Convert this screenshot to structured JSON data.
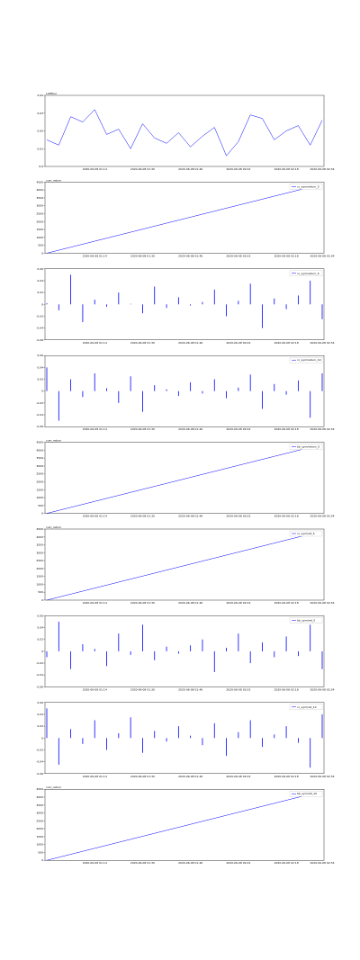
{
  "chart_data": [
    {
      "type": "line",
      "title": "LATEbsl",
      "categories": [
        null,
        null,
        null,
        null,
        "2020-06-08 01:14",
        null,
        null,
        null,
        "2020-06-08 01:30",
        null,
        null,
        null,
        "2020-06-08 01:46",
        null,
        null,
        null,
        "2020-06-08 02:02",
        null,
        null,
        null,
        "2020-06-08 02:18",
        null,
        null,
        "2020-06-08 02:34"
      ],
      "series": [
        {
          "name": "LATEbsl",
          "color": "#0000ff",
          "values": [
            0.615,
            0.612,
            0.628,
            0.625,
            0.632,
            0.618,
            0.621,
            0.61,
            0.624,
            0.616,
            0.613,
            0.619,
            0.611,
            0.617,
            0.622,
            0.606,
            0.614,
            0.629,
            0.627,
            0.615,
            0.62,
            0.623,
            0.612,
            0.626
          ]
        }
      ],
      "ylim": [
        0.6,
        0.64
      ],
      "yticks": [
        0.6,
        0.61,
        0.62,
        0.63,
        0.64
      ],
      "legend": false
    },
    {
      "type": "line",
      "title": "cum_return",
      "categories": [
        null,
        null,
        null,
        null,
        "2020-06-08 01:14",
        null,
        null,
        null,
        "2020-06-08 01:30",
        null,
        null,
        null,
        "2020-06-08 01:46",
        null,
        null,
        null,
        "2020-06-08 02:02",
        null,
        null,
        null,
        "2020-06-08 02:18",
        null,
        null,
        "2020-06-08 02:34"
      ],
      "series": [
        {
          "name": "cc_sym/return_5",
          "color": "#0000ff",
          "values": [
            0,
            190,
            380,
            570,
            760,
            950,
            1140,
            1330,
            1520,
            1710,
            1900,
            2090,
            2280,
            2470,
            2660,
            2850,
            3040,
            3230,
            3420,
            3610,
            3800,
            3990,
            4180,
            4370
          ]
        }
      ],
      "ylim": [
        0,
        4500
      ],
      "yticks": [
        0,
        500,
        1000,
        1500,
        2000,
        2500,
        3000,
        3500,
        4000,
        4500
      ],
      "legend": "upper right"
    },
    {
      "type": "bar",
      "categories": [
        null,
        null,
        null,
        null,
        "2020-06-08 01:14",
        null,
        null,
        null,
        "2020-06-08 01:30",
        null,
        null,
        null,
        "2020-06-08 01:46",
        null,
        null,
        null,
        "2020-06-08 02:02",
        null,
        null,
        null,
        "2020-06-08 02:18",
        null,
        null,
        "2020-06-08 02:34"
      ],
      "series": [
        {
          "name": "cc_sym/return_5",
          "color": "#0000ff",
          "values": [
            0.002,
            -0.01,
            0.05,
            -0.03,
            0.008,
            -0.004,
            0.02,
            0.001,
            -0.015,
            0.03,
            -0.006,
            0.012,
            -0.002,
            0.004,
            0.025,
            -0.02,
            0.006,
            0.035,
            -0.04,
            0.01,
            -0.008,
            0.015,
            0.04,
            -0.025
          ]
        }
      ],
      "ylim": [
        -0.06,
        0.06
      ],
      "yticks": [
        -0.06,
        -0.04,
        -0.02,
        0,
        0.02,
        0.04,
        0.06
      ],
      "legend": "upper right"
    },
    {
      "type": "bar",
      "categories": [
        null,
        null,
        null,
        null,
        "2020-06-08 01:14",
        null,
        null,
        null,
        "2020-06-08 01:30",
        null,
        null,
        null,
        "2020-06-08 01:46",
        null,
        null,
        null,
        "2020-06-08 02:02",
        null,
        null,
        null,
        "2020-06-08 02:18",
        null,
        null,
        "2020-06-08 02:34"
      ],
      "series": [
        {
          "name": "cc_sym/return_10",
          "color": "#0000ff",
          "values": [
            0.04,
            -0.05,
            0.02,
            -0.01,
            0.03,
            0.005,
            -0.02,
            0.025,
            -0.035,
            0.01,
            0.003,
            -0.008,
            0.015,
            -0.004,
            0.02,
            -0.012,
            0.006,
            0.028,
            -0.03,
            0.012,
            -0.006,
            0.018,
            -0.045,
            0.03
          ]
        }
      ],
      "ylim": [
        -0.06,
        0.06
      ],
      "yticks": [
        -0.06,
        -0.04,
        -0.02,
        0,
        0.02,
        0.04,
        0.06
      ],
      "legend": "upper right"
    },
    {
      "type": "line",
      "title": "cum_return",
      "categories": [
        null,
        null,
        null,
        null,
        "2020-06-08 01:14",
        null,
        null,
        null,
        "2020-06-08 01:30",
        null,
        null,
        null,
        "2020-06-08 01:46",
        null,
        null,
        null,
        "2020-06-08 02:02",
        null,
        null,
        null,
        "2020-06-08 02:18",
        null,
        null,
        "2020-06-08 02:34"
      ],
      "series": [
        {
          "name": "bb_sym/return_5",
          "color": "#0000ff",
          "values": [
            0,
            190,
            380,
            570,
            760,
            950,
            1140,
            1330,
            1520,
            1710,
            1900,
            2090,
            2280,
            2470,
            2660,
            2850,
            3040,
            3230,
            3420,
            3610,
            3800,
            3990,
            4180,
            4370
          ]
        }
      ],
      "ylim": [
        0,
        4500
      ],
      "yticks": [
        0,
        500,
        1000,
        1500,
        2000,
        2500,
        3000,
        3500,
        4000,
        4500
      ],
      "legend": "upper right"
    },
    {
      "type": "line",
      "title": "cum_return",
      "categories": [
        null,
        null,
        null,
        null,
        "2020-06-08 01:14",
        null,
        null,
        null,
        "2020-06-08 01:30",
        null,
        null,
        null,
        "2020-06-08 01:46",
        null,
        null,
        null,
        "2020-06-08 02:02",
        null,
        null,
        null,
        "2020-06-08 02:18",
        null,
        null,
        "2020-06-08 02:34"
      ],
      "series": [
        {
          "name": "cc_sym/ret_5",
          "color": "#0000ff",
          "values": [
            0,
            190,
            380,
            570,
            760,
            950,
            1140,
            1330,
            1520,
            1710,
            1900,
            2090,
            2280,
            2470,
            2660,
            2850,
            3040,
            3230,
            3420,
            3610,
            3800,
            3990,
            4180,
            4370
          ]
        }
      ],
      "ylim": [
        0,
        4500
      ],
      "yticks": [
        0,
        500,
        1000,
        1500,
        2000,
        2500,
        3000,
        3500,
        4000,
        4500
      ],
      "legend": "upper right"
    },
    {
      "type": "bar",
      "categories": [
        null,
        null,
        null,
        null,
        "2020-06-08 01:14",
        null,
        null,
        null,
        "2020-06-08 01:30",
        null,
        null,
        null,
        "2020-06-08 01:46",
        null,
        null,
        null,
        "2020-06-08 02:02",
        null,
        null,
        null,
        "2020-06-08 02:18",
        null,
        null,
        "2020-06-08 02:34"
      ],
      "series": [
        {
          "name": "bb_sym/ret_5",
          "color": "#0000ff",
          "values": [
            -0.01,
            0.05,
            -0.03,
            0.012,
            0.004,
            -0.025,
            0.03,
            -0.006,
            0.045,
            -0.015,
            0.008,
            -0.004,
            0.01,
            0.02,
            -0.035,
            0.006,
            0.03,
            -0.02,
            0.015,
            -0.01,
            0.025,
            -0.008,
            0.045,
            -0.03
          ]
        }
      ],
      "ylim": [
        -0.06,
        0.06
      ],
      "yticks": [
        -0.06,
        -0.04,
        -0.02,
        0,
        0.02,
        0.04,
        0.06
      ],
      "legend": "upper right"
    },
    {
      "type": "bar",
      "categories": [
        null,
        null,
        null,
        null,
        "2020-06-08 01:14",
        null,
        null,
        null,
        "2020-06-08 01:30",
        null,
        null,
        null,
        "2020-06-08 01:46",
        null,
        null,
        null,
        "2020-06-08 02:02",
        null,
        null,
        null,
        "2020-06-08 02:18",
        null,
        null,
        "2020-06-08 02:34"
      ],
      "series": [
        {
          "name": "cc_sym/ret_10",
          "color": "#0000ff",
          "values": [
            0.05,
            -0.045,
            0.015,
            -0.01,
            0.03,
            -0.02,
            0.008,
            0.035,
            -0.025,
            0.012,
            -0.006,
            0.02,
            0.004,
            -0.012,
            0.025,
            -0.03,
            0.01,
            0.03,
            -0.015,
            0.006,
            0.02,
            -0.008,
            -0.05,
            0.04
          ]
        }
      ],
      "ylim": [
        -0.06,
        0.06
      ],
      "yticks": [
        -0.06,
        -0.04,
        -0.02,
        0,
        0.02,
        0.04,
        0.06
      ],
      "legend": "upper right"
    },
    {
      "type": "line",
      "title": "cum_return",
      "categories": [
        null,
        null,
        null,
        null,
        "2020-06-08 01:14",
        null,
        null,
        null,
        "2020-06-08 01:30",
        null,
        null,
        null,
        "2020-06-08 01:46",
        null,
        null,
        null,
        "2020-06-08 02:02",
        null,
        null,
        null,
        "2020-06-08 02:18",
        null,
        null,
        "2020-06-08 02:34"
      ],
      "series": [
        {
          "name": "bb_sym/ret_10",
          "color": "#0000ff",
          "values": [
            0,
            190,
            380,
            570,
            760,
            950,
            1140,
            1330,
            1520,
            1710,
            1900,
            2090,
            2280,
            2470,
            2660,
            2850,
            3040,
            3230,
            3420,
            3610,
            3800,
            3990,
            4180,
            4370
          ]
        }
      ],
      "ylim": [
        0,
        4500
      ],
      "yticks": [
        0,
        500,
        1000,
        1500,
        2000,
        2500,
        3000,
        3500,
        4000,
        4500
      ],
      "legend": "upper right"
    }
  ]
}
